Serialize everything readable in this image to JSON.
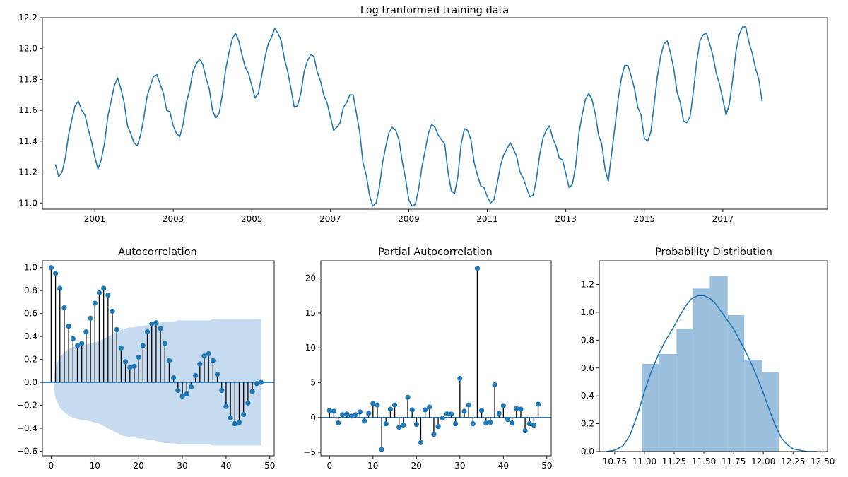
{
  "chart_data": [
    {
      "type": "line",
      "title": "Log tranformed training data",
      "xlabel": "",
      "ylabel": "",
      "start": "2000-01",
      "end": "2017-12",
      "xlim": [
        "1999-09",
        "2019-09"
      ],
      "ylim": [
        10.96,
        12.2
      ],
      "xticks": [
        "2001",
        "2003",
        "2005",
        "2007",
        "2009",
        "2011",
        "2013",
        "2015",
        "2017"
      ],
      "yticks": [
        11.0,
        11.2,
        11.4,
        11.6,
        11.8,
        12.0,
        12.2
      ],
      "ytick_labels": [
        "11.0",
        "11.2",
        "11.4",
        "11.6",
        "11.8",
        "12.0",
        "12.2"
      ],
      "grid": false,
      "color": "#1f77b4",
      "series": [
        {
          "name": "",
          "values": [
            11.25,
            11.17,
            11.2,
            11.29,
            11.44,
            11.54,
            11.63,
            11.66,
            11.6,
            11.57,
            11.48,
            11.4,
            11.3,
            11.22,
            11.28,
            11.39,
            11.56,
            11.66,
            11.76,
            11.81,
            11.74,
            11.65,
            11.5,
            11.45,
            11.39,
            11.37,
            11.44,
            11.55,
            11.69,
            11.76,
            11.82,
            11.83,
            11.77,
            11.71,
            11.6,
            11.59,
            11.5,
            11.45,
            11.43,
            11.51,
            11.65,
            11.73,
            11.85,
            11.9,
            11.93,
            11.9,
            11.81,
            11.74,
            11.6,
            11.55,
            11.58,
            11.7,
            11.86,
            11.97,
            12.06,
            12.1,
            12.05,
            11.96,
            11.88,
            11.84,
            11.76,
            11.68,
            11.71,
            11.82,
            11.94,
            12.03,
            12.07,
            12.13,
            12.1,
            12.05,
            11.93,
            11.85,
            11.74,
            11.62,
            11.63,
            11.71,
            11.85,
            11.92,
            11.96,
            11.95,
            11.85,
            11.79,
            11.7,
            11.65,
            11.56,
            11.47,
            11.49,
            11.52,
            11.62,
            11.65,
            11.7,
            11.7,
            11.58,
            11.46,
            11.26,
            11.18,
            11.05,
            10.98,
            11.0,
            11.1,
            11.26,
            11.37,
            11.46,
            11.49,
            11.47,
            11.41,
            11.27,
            11.16,
            11.02,
            10.98,
            10.99,
            11.09,
            11.23,
            11.34,
            11.45,
            11.51,
            11.49,
            11.44,
            11.41,
            11.38,
            11.2,
            11.08,
            11.06,
            11.17,
            11.38,
            11.48,
            11.47,
            11.41,
            11.26,
            11.18,
            11.11,
            11.1,
            11.04,
            11.0,
            11.02,
            11.12,
            11.24,
            11.31,
            11.35,
            11.39,
            11.35,
            11.3,
            11.2,
            11.16,
            11.1,
            11.04,
            11.05,
            11.15,
            11.31,
            11.42,
            11.47,
            11.5,
            11.42,
            11.37,
            11.29,
            11.28,
            11.19,
            11.1,
            11.12,
            11.24,
            11.45,
            11.57,
            11.67,
            11.71,
            11.67,
            11.58,
            11.44,
            11.38,
            11.22,
            11.14,
            11.32,
            11.49,
            11.67,
            11.81,
            11.89,
            11.89,
            11.82,
            11.74,
            11.62,
            11.57,
            11.42,
            11.4,
            11.46,
            11.64,
            11.82,
            11.95,
            12.03,
            12.05,
            11.97,
            11.87,
            11.72,
            11.65,
            11.53,
            11.52,
            11.56,
            11.72,
            11.91,
            12.05,
            12.09,
            12.1,
            12.03,
            11.95,
            11.84,
            11.77,
            11.67,
            11.57,
            11.64,
            11.8,
            11.98,
            12.09,
            12.14,
            12.14,
            12.04,
            11.97,
            11.87,
            11.8,
            11.66
          ]
        }
      ]
    },
    {
      "type": "stem",
      "title": "Autocorrelation",
      "xlim": [
        -2,
        51
      ],
      "ylim": [
        -0.64,
        1.06
      ],
      "xticks": [
        0,
        10,
        20,
        30,
        40,
        50
      ],
      "yticks": [
        -0.6,
        -0.4,
        -0.2,
        0.0,
        0.2,
        0.4,
        0.6,
        0.8,
        1.0
      ],
      "ytick_labels": [
        "−0.6",
        "−0.4",
        "−0.2",
        "0.0",
        "0.2",
        "0.4",
        "0.6",
        "0.8",
        "1.0"
      ],
      "x": [
        0,
        1,
        2,
        3,
        4,
        5,
        6,
        7,
        8,
        9,
        10,
        11,
        12,
        13,
        14,
        15,
        16,
        17,
        18,
        19,
        20,
        21,
        22,
        23,
        24,
        25,
        26,
        27,
        28,
        29,
        30,
        31,
        32,
        33,
        34,
        35,
        36,
        37,
        38,
        39,
        40,
        41,
        42,
        43,
        44,
        45,
        46,
        47,
        48
      ],
      "values": [
        1.0,
        0.95,
        0.82,
        0.65,
        0.49,
        0.38,
        0.32,
        0.34,
        0.44,
        0.56,
        0.69,
        0.78,
        0.82,
        0.76,
        0.62,
        0.46,
        0.3,
        0.18,
        0.13,
        0.14,
        0.22,
        0.32,
        0.44,
        0.51,
        0.52,
        0.47,
        0.34,
        0.19,
        0.04,
        -0.07,
        -0.12,
        -0.1,
        -0.04,
        0.06,
        0.16,
        0.23,
        0.25,
        0.19,
        0.07,
        -0.07,
        -0.21,
        -0.31,
        -0.36,
        -0.35,
        -0.28,
        -0.18,
        -0.08,
        -0.01,
        0.0
      ],
      "confidence_band": [
        0.0,
        0.14,
        0.22,
        0.26,
        0.29,
        0.31,
        0.32,
        0.33,
        0.33,
        0.34,
        0.35,
        0.36,
        0.38,
        0.4,
        0.42,
        0.44,
        0.46,
        0.47,
        0.48,
        0.48,
        0.49,
        0.49,
        0.5,
        0.5,
        0.51,
        0.52,
        0.53,
        0.53,
        0.53,
        0.54,
        0.54,
        0.54,
        0.54,
        0.54,
        0.54,
        0.54,
        0.54,
        0.55,
        0.55,
        0.55,
        0.55,
        0.55,
        0.55,
        0.55,
        0.55,
        0.55,
        0.55,
        0.55,
        0.55
      ],
      "color": "#1f77b4",
      "band_color": "#c6dbef"
    },
    {
      "type": "stem",
      "title": "Partial Autocorrelation",
      "xlim": [
        -2,
        51
      ],
      "ylim": [
        -5.5,
        22.5
      ],
      "xticks": [
        0,
        10,
        20,
        30,
        40,
        50
      ],
      "yticks": [
        -5,
        0,
        5,
        10,
        15,
        20
      ],
      "ytick_labels": [
        "−5",
        "0",
        "5",
        "10",
        "15",
        "20"
      ],
      "x": [
        0,
        1,
        2,
        3,
        4,
        5,
        6,
        7,
        8,
        9,
        10,
        11,
        12,
        13,
        14,
        15,
        16,
        17,
        18,
        19,
        20,
        21,
        22,
        23,
        24,
        25,
        26,
        27,
        28,
        29,
        30,
        31,
        32,
        33,
        34,
        35,
        36,
        37,
        38,
        39,
        40,
        41,
        42,
        43,
        44,
        45,
        46,
        47,
        48
      ],
      "values": [
        1.0,
        0.9,
        -0.8,
        0.4,
        0.5,
        0.2,
        0.4,
        0.8,
        -0.5,
        0.6,
        2.0,
        1.8,
        -4.6,
        -0.9,
        1.2,
        1.8,
        -1.4,
        -1.1,
        2.9,
        1.1,
        -1.0,
        -3.6,
        1.1,
        1.5,
        -2.4,
        -1.3,
        -0.1,
        0.5,
        0.5,
        -0.9,
        5.6,
        0.9,
        1.8,
        -0.9,
        21.4,
        1.0,
        -0.8,
        -0.7,
        4.7,
        0.6,
        1.7,
        -0.3,
        -0.8,
        1.3,
        1.2,
        -1.9,
        -0.9,
        -1.1,
        1.9
      ],
      "color": "#1f77b4"
    },
    {
      "type": "histogram",
      "title": "Probability Distribution",
      "xlim": [
        10.62,
        12.54
      ],
      "ylim": [
        0,
        1.37
      ],
      "xticks": [
        10.75,
        11.0,
        11.25,
        11.5,
        11.75,
        12.0,
        12.25,
        12.5
      ],
      "xtick_labels": [
        "10.75",
        "11.00",
        "11.25",
        "11.50",
        "11.75",
        "12.00",
        "12.25",
        "12.50"
      ],
      "yticks": [
        0.0,
        0.2,
        0.4,
        0.6,
        0.8,
        1.0,
        1.2
      ],
      "ytick_labels": [
        "0.0",
        "0.2",
        "0.4",
        "0.6",
        "0.8",
        "1.0",
        "1.2"
      ],
      "bin_edges": [
        10.98,
        11.12,
        11.27,
        11.41,
        11.55,
        11.7,
        11.84,
        11.99,
        12.13
      ],
      "densities": [
        0.63,
        0.7,
        0.88,
        1.17,
        1.26,
        0.98,
        0.66,
        0.57
      ],
      "kde": {
        "x": [
          10.68,
          10.75,
          10.82,
          10.88,
          10.94,
          11.0,
          11.06,
          11.12,
          11.18,
          11.25,
          11.3,
          11.35,
          11.4,
          11.45,
          11.5,
          11.55,
          11.6,
          11.65,
          11.7,
          11.75,
          11.8,
          11.85,
          11.9,
          11.95,
          12.0,
          12.05,
          12.1,
          12.15,
          12.2,
          12.25,
          12.3,
          12.37,
          12.45
        ],
        "y": [
          0.0,
          0.01,
          0.04,
          0.12,
          0.26,
          0.43,
          0.58,
          0.7,
          0.8,
          0.9,
          0.98,
          1.05,
          1.1,
          1.12,
          1.12,
          1.1,
          1.06,
          1.0,
          0.94,
          0.88,
          0.8,
          0.72,
          0.63,
          0.53,
          0.42,
          0.3,
          0.19,
          0.1,
          0.05,
          0.02,
          0.01,
          0.0,
          0.0
        ]
      },
      "bar_color": "#9ac0dd",
      "line_color": "#1f77b4"
    }
  ]
}
